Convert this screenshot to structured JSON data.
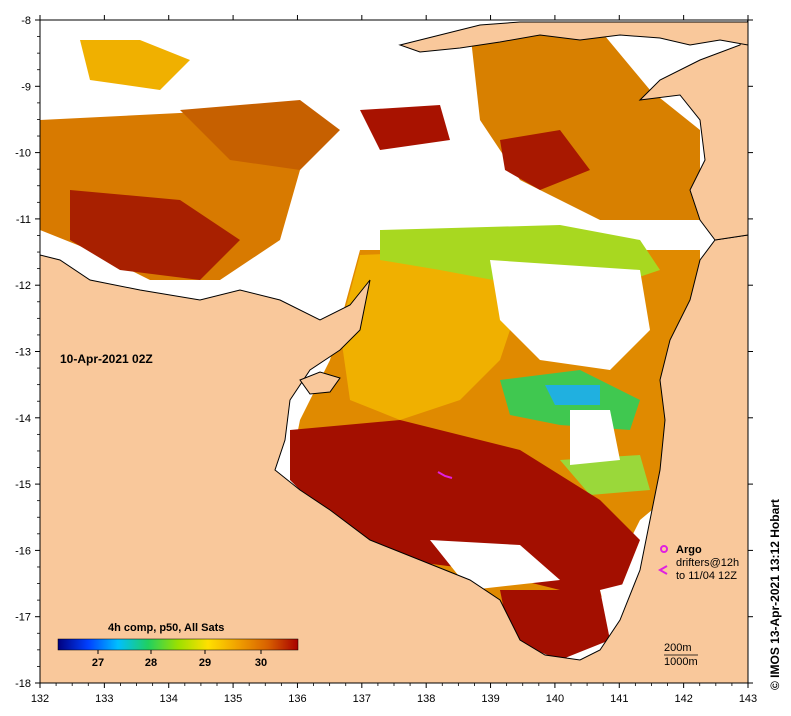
{
  "map": {
    "date_label": "10-Apr-2021 02Z",
    "x_ticks": [
      "132",
      "133",
      "134",
      "135",
      "136",
      "137",
      "138",
      "139",
      "140",
      "141",
      "142",
      "143"
    ],
    "y_ticks": [
      "-8",
      "-9",
      "-10",
      "-11",
      "-12",
      "-13",
      "-14",
      "-15",
      "-16",
      "-17",
      "-18"
    ],
    "colors": {
      "land": "#f9c89b",
      "nodata": "#ffffff",
      "hot": "#a50f00"
    }
  },
  "colorbar": {
    "title": "4h comp, p50, All Sats",
    "ticks": [
      "27",
      "28",
      "29",
      "30"
    ],
    "gradient": [
      "#00007f",
      "#0040ff",
      "#00bfff",
      "#20d060",
      "#9be000",
      "#ffe000",
      "#f0a000",
      "#d86000",
      "#a80000"
    ]
  },
  "legend": {
    "argo_label": "Argo",
    "drifters_line1": "drifters@12h",
    "drifters_line2": "to 11/04 12Z",
    "argo_color": "#e020e0"
  },
  "depth_legend": {
    "line1": "200m",
    "line2": "1000m"
  },
  "credit": "© IMOS 13-Apr-2021 13:12 Hobart"
}
